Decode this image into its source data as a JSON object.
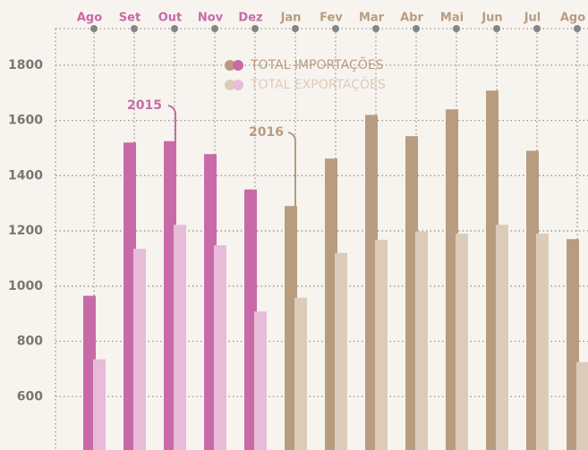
{
  "chart_data": {
    "type": "bar",
    "categories": [
      "Ago",
      "Set",
      "Out",
      "Nov",
      "Dez",
      "Jan",
      "Fev",
      "Mar",
      "Abr",
      "Mai",
      "Jun",
      "Jul",
      "Ago"
    ],
    "series": [
      {
        "name": "TOTAL IMPORTAÇÕES",
        "colors": [
          "#c96aa8",
          "#c96aa8",
          "#c96aa8",
          "#c96aa8",
          "#c96aa8",
          "#b89c80",
          "#b89c80",
          "#b89c80",
          "#b89c80",
          "#b89c80",
          "#b89c80",
          "#b89c80",
          "#b89c80"
        ],
        "values": [
          965,
          1520,
          1525,
          1478,
          1350,
          1290,
          1462,
          1620,
          1543,
          1640,
          1708,
          1490,
          1170
        ]
      },
      {
        "name": "TOTAL EXPORTAÇÕES",
        "colors": [
          "#e8bcd9",
          "#e8bcd9",
          "#e8bcd9",
          "#e8bcd9",
          "#e8bcd9",
          "#ddcbb9",
          "#ddcbb9",
          "#ddcbb9",
          "#ddcbb9",
          "#ddcbb9",
          "#ddcbb9",
          "#ddcbb9",
          "#ddcbb9"
        ],
        "values": [
          735,
          1135,
          1222,
          1148,
          908,
          958,
          1120,
          1168,
          1198,
          1190,
          1222,
          1190,
          725
        ]
      }
    ],
    "annotations": [
      "2015",
      "2016"
    ],
    "ylim": [
      400,
      1900
    ],
    "yticks": [
      600,
      800,
      1000,
      1200,
      1400,
      1600,
      1800
    ],
    "grid": true
  }
}
